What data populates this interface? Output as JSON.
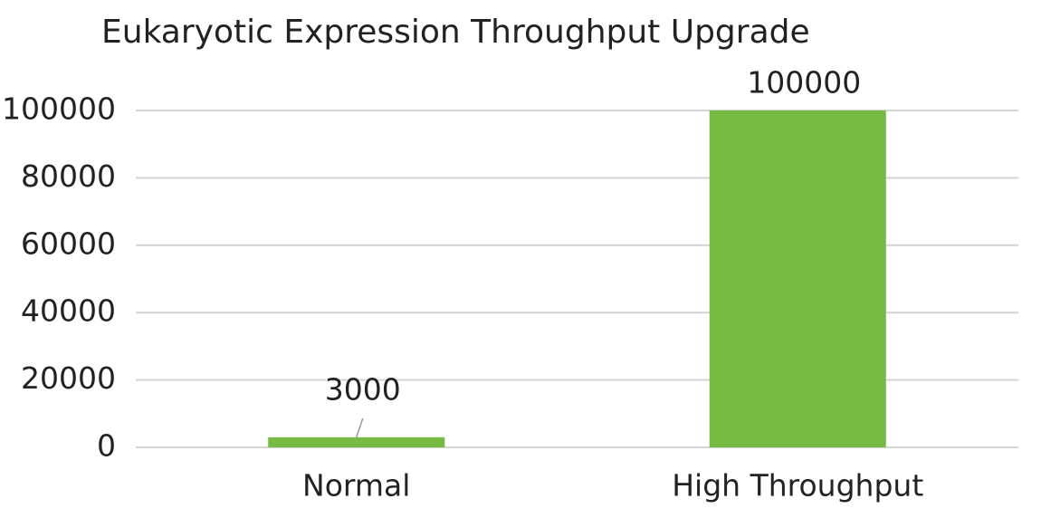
{
  "chart_data": {
    "type": "bar",
    "title": "Eukaryotic Expression Throughput Upgrade",
    "categories": [
      "Normal",
      "High Throughput"
    ],
    "values": [
      3000,
      100000
    ],
    "color": "#76b943",
    "ylim": [
      0,
      100000
    ],
    "yticks": [
      0,
      20000,
      40000,
      60000,
      80000,
      100000
    ],
    "grid": true
  }
}
